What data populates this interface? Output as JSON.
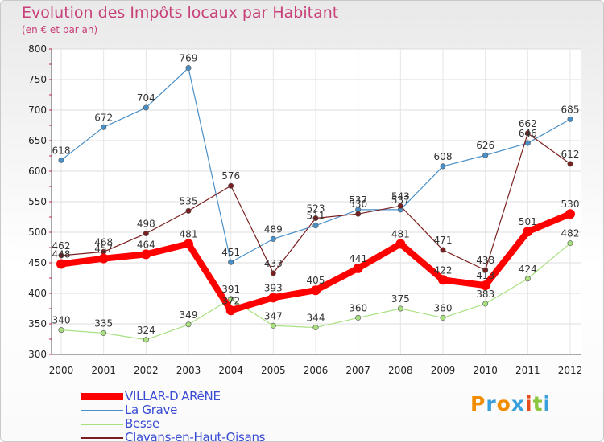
{
  "chart_data": {
    "type": "line",
    "title": "Evolution des Impôts locaux par Habitant",
    "subtitle": "(en € et par an)",
    "xlabel": "",
    "ylabel": "",
    "ylim": [
      300,
      800
    ],
    "yticks": [
      300,
      350,
      400,
      450,
      500,
      550,
      600,
      650,
      700,
      750,
      800
    ],
    "categories": [
      "2000",
      "2001",
      "2002",
      "2003",
      "2004",
      "2005",
      "2006",
      "2007",
      "2008",
      "2009",
      "2010",
      "2011",
      "2012"
    ],
    "series": [
      {
        "name": "VILLAR-D'ARêNE",
        "color": "#ff0000",
        "values": [
          448,
          457,
          464,
          481,
          372,
          393,
          405,
          441,
          481,
          422,
          413,
          501,
          530
        ],
        "labels": [
          "448",
          "457",
          "464",
          "481",
          "372",
          "393",
          "405",
          "441",
          "481",
          "422",
          "413",
          "501",
          "530"
        ]
      },
      {
        "name": "La Grave",
        "color": "#4a90c8",
        "values": [
          618,
          672,
          704,
          769,
          451,
          489,
          511,
          537,
          537,
          608,
          626,
          646,
          685
        ],
        "labels": [
          "618",
          "672",
          "704",
          "769",
          "451",
          "489",
          "511",
          "537",
          "537",
          "608",
          "626",
          "646",
          "685"
        ]
      },
      {
        "name": "Besse",
        "color": "#a8e080",
        "values": [
          340,
          335,
          324,
          349,
          391,
          347,
          344,
          360,
          375,
          360,
          383,
          424,
          482
        ],
        "labels": [
          "340",
          "335",
          "324",
          "349",
          "391",
          "347",
          "344",
          "360",
          "375",
          "360",
          "383",
          "424",
          "482"
        ]
      },
      {
        "name": "Clavans-en-Haut-Oisans",
        "color": "#7a1f1f",
        "values": [
          462,
          468,
          498,
          535,
          576,
          433,
          523,
          530,
          543,
          471,
          438,
          662,
          612
        ],
        "labels": [
          "462",
          "468",
          "498",
          "535",
          "576",
          "433",
          "523",
          "530",
          "543",
          "471",
          "438",
          "662",
          "612"
        ]
      }
    ],
    "legend_position": "bottom-left"
  },
  "brand": {
    "name": "Proxiti",
    "letters": [
      "P",
      "r",
      "o",
      "x",
      "i",
      "t",
      "i"
    ],
    "colors": [
      "#f28c00",
      "#3aa0dc",
      "#f28c00",
      "#3aa0dc",
      "#e84c1c",
      "#8cc63f",
      "#3aa0dc"
    ]
  }
}
